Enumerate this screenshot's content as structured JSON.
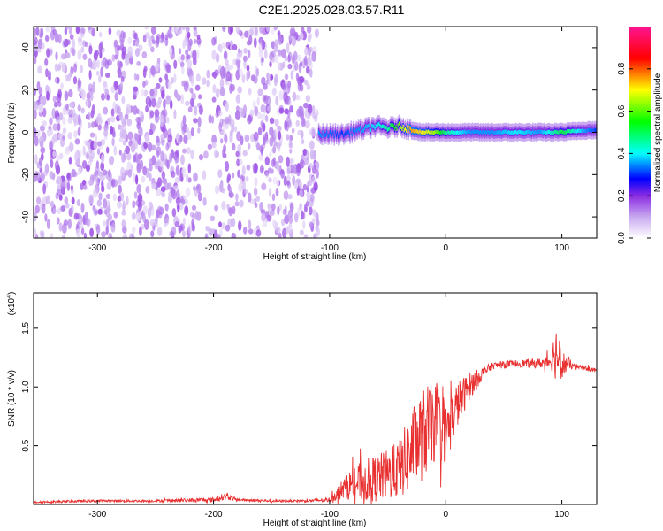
{
  "title": "C2E1.2025.028.03.57.R11",
  "chart_data": [
    {
      "type": "heatmap",
      "xlabel": "Height of straight line (km)",
      "ylabel": "Frequency (Hz)",
      "xlim": [
        -355,
        130
      ],
      "ylim": [
        -50,
        50
      ],
      "xticks": [
        -300,
        -200,
        -100,
        0,
        100
      ],
      "yticks": [
        -40,
        -20,
        0,
        20,
        40
      ],
      "colorbar": {
        "label": "Normalized spectral amplitude",
        "range": [
          0.0,
          1.0
        ],
        "ticks": [
          0.0,
          0.2,
          0.4,
          0.6,
          0.8
        ],
        "tick_labels": [
          "0.0",
          "0.2",
          "0.4",
          "0.6",
          "0.8"
        ],
        "colormap": [
          "#ffffff",
          "#c8a8f0",
          "#8a2be2",
          "#0000ff",
          "#00ffff",
          "#00ff00",
          "#ffff00",
          "#ff0000",
          "#ff1493"
        ]
      },
      "regions": [
        {
          "x": [
            -355,
            -110
          ],
          "y": [
            -50,
            50
          ],
          "amplitude": 0.08,
          "note": "broadband noise"
        },
        {
          "x": [
            -110,
            130
          ],
          "y": [
            -3,
            6
          ],
          "amplitude": 0.5,
          "note": "signal trace"
        }
      ],
      "trace": {
        "x": [
          -110,
          -90,
          -75,
          -60,
          -50,
          -40,
          -30,
          -20,
          -10,
          0,
          20,
          40,
          60,
          80,
          100,
          120,
          130
        ],
        "y": [
          -1,
          -1,
          1,
          3,
          2,
          3,
          1,
          0,
          0,
          0,
          0,
          0,
          0,
          0,
          0,
          1,
          1
        ],
        "amplitude": [
          0.45,
          0.4,
          0.45,
          0.5,
          0.55,
          0.7,
          0.8,
          0.75,
          0.7,
          0.55,
          0.45,
          0.45,
          0.5,
          0.45,
          0.6,
          0.45,
          0.4
        ]
      }
    },
    {
      "type": "line",
      "xlabel": "Height of straight line (km)",
      "ylabel": "SNR (10 * v/v)",
      "yunit": "(x10",
      "yunit_exp": "4",
      "yunit_close": ")",
      "xlim": [
        -355,
        130
      ],
      "ylim": [
        0,
        1.8
      ],
      "xticks": [
        -300,
        -200,
        -100,
        0,
        100
      ],
      "yticks": [
        0.5,
        1.0,
        1.5
      ],
      "ytick_labels": [
        "0.5",
        "1.0",
        "1.5"
      ],
      "color": "#e83030",
      "series": [
        {
          "x": [
            -355,
            -300,
            -250,
            -200,
            -190,
            -180,
            -150,
            -120,
            -100,
            -90,
            -80,
            -70,
            -60,
            -50,
            -40,
            -30,
            -20,
            -10,
            0,
            10,
            20,
            30,
            40,
            60,
            80,
            90,
            95,
            100,
            110,
            120,
            130
          ],
          "y": [
            0.02,
            0.03,
            0.03,
            0.04,
            0.07,
            0.04,
            0.03,
            0.03,
            0.04,
            0.12,
            0.18,
            0.2,
            0.22,
            0.25,
            0.3,
            0.45,
            0.6,
            0.7,
            0.6,
            0.85,
            1.0,
            1.1,
            1.18,
            1.2,
            1.2,
            1.22,
            1.3,
            1.2,
            1.18,
            1.16,
            1.14
          ],
          "noise": [
            0.01,
            0.01,
            0.01,
            0.02,
            0.03,
            0.01,
            0.01,
            0.01,
            0.02,
            0.08,
            0.14,
            0.18,
            0.2,
            0.22,
            0.25,
            0.35,
            0.4,
            0.35,
            0.25,
            0.2,
            0.12,
            0.06,
            0.03,
            0.03,
            0.04,
            0.06,
            0.25,
            0.12,
            0.02,
            0.02,
            0.02
          ]
        }
      ]
    }
  ]
}
